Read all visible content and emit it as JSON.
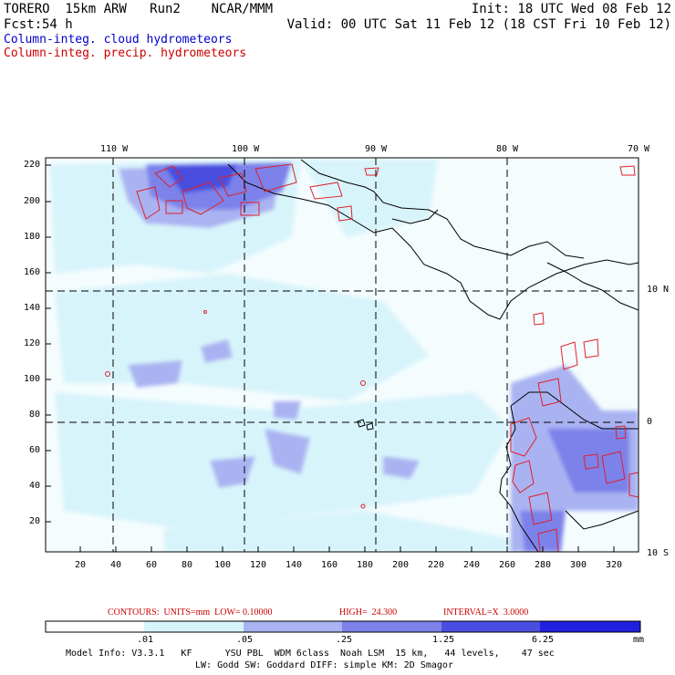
{
  "header": {
    "model_line": "TORERO  15km ARW   Run2    NCAR/MMM",
    "init": "Init: 18 UTC Wed 08 Feb 12",
    "fcst_label": "Fcst:",
    "fcst_hours": "54 h",
    "valid": "Valid: 00 UTC Sat 11 Feb 12 (18 CST Fri 10 Feb 12)",
    "field_cloud": "Column-integ. cloud hydrometeors",
    "field_precip": "Column-integ. precip. hydrometeors"
  },
  "colors": {
    "cloud_label": "#0000cc",
    "precip_label": "#cc0000",
    "contour": "#e0202a",
    "coast": "#000000",
    "shade_levels": [
      "#ffffff",
      "#d8f4fb",
      "#aab3f2",
      "#7c82ea",
      "#4a4ee0",
      "#2020e0"
    ]
  },
  "map": {
    "lon_labels": [
      "110 W",
      "100 W",
      "90 W",
      "80 W",
      "70 W"
    ],
    "lat_labels": [
      "10 N",
      "0",
      "10 S"
    ],
    "y_ticks": [
      "220",
      "200",
      "180",
      "160",
      "140",
      "120",
      "100",
      "80",
      "60",
      "40",
      "20"
    ],
    "x_ticks": [
      "20",
      "40",
      "60",
      "80",
      "100",
      "120",
      "140",
      "160",
      "180",
      "200",
      "220",
      "240",
      "260",
      "280",
      "300",
      "320"
    ]
  },
  "contour_info": {
    "units": "CONTOURS:  UNITS=mm  LOW= 0.10000",
    "high": "HIGH=  24.300",
    "interval": "INTERVAL=X  3.0000"
  },
  "colorbar": {
    "ticks": [
      ".01",
      ".05",
      ".25",
      "1.25",
      "6.25"
    ],
    "unit": "mm"
  },
  "model_info": {
    "line1": "Model Info: V3.3.1   KF      YSU PBL  WDM 6class  Noah LSM  15 km,   44 levels,    47 sec",
    "line2": "LW: Godd SW: Goddard DIFF: simple KM: 2D Smagor"
  }
}
